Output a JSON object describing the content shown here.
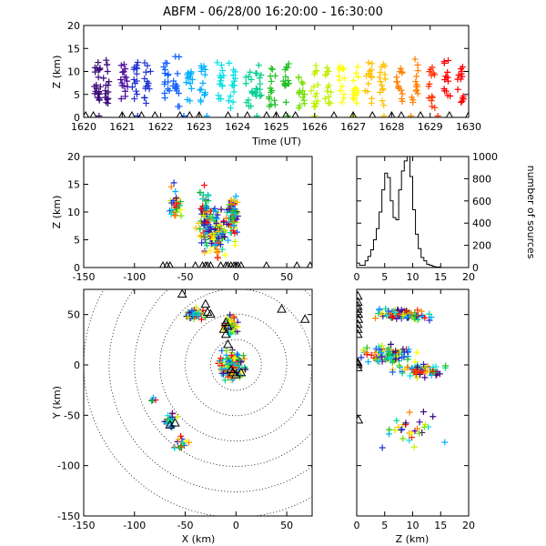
{
  "title": "ABFM - 06/28/00 16:20:00 - 16:30:00",
  "colors": {
    "time_palette": [
      "#3a0a78",
      "#4a0898",
      "#2030d0",
      "#1060ff",
      "#00b0ff",
      "#00e0e0",
      "#00d090",
      "#20c020",
      "#70e000",
      "#c0f000",
      "#ffff00",
      "#ffc000",
      "#ff8000",
      "#ff3000",
      "#ff0000"
    ],
    "axis": "#000000",
    "station_marker": "#000000"
  },
  "chart_data": [
    {
      "id": "time_height",
      "type": "scatter",
      "marker": "plus",
      "xlabel": "Time (UT)",
      "ylabel": "Z (km)",
      "x_ticks": [
        "1620",
        "1621",
        "1622",
        "1623",
        "1624",
        "1625",
        "1626",
        "1627",
        "1628",
        "1629",
        "1630"
      ],
      "y_ticks": [
        "0",
        "5",
        "10",
        "15",
        "20"
      ],
      "xlim": [
        0,
        10
      ],
      "ylim": [
        0,
        20
      ],
      "x_note": "x is minutes after 16:20:00 UT",
      "bursts": [
        {
          "t": 0.35,
          "zmin": 2,
          "zmax": 12,
          "n": 22
        },
        {
          "t": 0.6,
          "zmin": 3,
          "zmax": 13,
          "n": 16
        },
        {
          "t": 1.05,
          "zmin": 1.5,
          "zmax": 12,
          "n": 16
        },
        {
          "t": 1.35,
          "zmin": 4,
          "zmax": 12,
          "n": 14
        },
        {
          "t": 1.65,
          "zmin": 3,
          "zmax": 13,
          "n": 14
        },
        {
          "t": 2.15,
          "zmin": 3,
          "zmax": 12,
          "n": 14
        },
        {
          "t": 2.4,
          "zmin": 2,
          "zmax": 14,
          "n": 14
        },
        {
          "t": 2.75,
          "zmin": 3,
          "zmax": 10,
          "n": 14
        },
        {
          "t": 3.1,
          "zmin": 3,
          "zmax": 12,
          "n": 14
        },
        {
          "t": 3.55,
          "zmin": 3,
          "zmax": 12,
          "n": 14
        },
        {
          "t": 3.85,
          "zmin": 2,
          "zmax": 12,
          "n": 14
        },
        {
          "t": 4.3,
          "zmin": 2,
          "zmax": 10,
          "n": 12
        },
        {
          "t": 4.55,
          "zmin": 4,
          "zmax": 12,
          "n": 14
        },
        {
          "t": 4.9,
          "zmin": 2,
          "zmax": 11,
          "n": 14
        },
        {
          "t": 5.25,
          "zmin": 3,
          "zmax": 12,
          "n": 14
        },
        {
          "t": 5.65,
          "zmin": 2,
          "zmax": 10,
          "n": 14
        },
        {
          "t": 6.0,
          "zmin": 2,
          "zmax": 12,
          "n": 14
        },
        {
          "t": 6.35,
          "zmin": 3,
          "zmax": 11,
          "n": 14
        },
        {
          "t": 6.7,
          "zmin": 3,
          "zmax": 12,
          "n": 14
        },
        {
          "t": 7.05,
          "zmin": 3,
          "zmax": 11,
          "n": 14
        },
        {
          "t": 7.4,
          "zmin": 3,
          "zmax": 12,
          "n": 14
        },
        {
          "t": 7.75,
          "zmin": 2,
          "zmax": 12,
          "n": 14
        },
        {
          "t": 8.2,
          "zmin": 3,
          "zmax": 12,
          "n": 14
        },
        {
          "t": 8.6,
          "zmin": 3,
          "zmax": 13,
          "n": 14
        },
        {
          "t": 9.05,
          "zmin": 2,
          "zmax": 12,
          "n": 14
        },
        {
          "t": 9.45,
          "zmin": 3,
          "zmax": 13,
          "n": 14
        },
        {
          "t": 9.8,
          "zmin": 3,
          "zmax": 12,
          "n": 14
        }
      ],
      "near_ground_stripe": {
        "z": 0,
        "t": [
          0.4,
          1.4,
          2.6,
          3.2,
          4.5,
          5.3,
          6.0,
          7.0,
          7.8,
          8.5,
          9.2
        ]
      },
      "stations": [
        0.05,
        0.25,
        1.0,
        1.25,
        1.5,
        1.85,
        2.5,
        2.75,
        3.0,
        3.75,
        4.25,
        4.75,
        5.0,
        5.25,
        5.5,
        6.5,
        7.0,
        7.5,
        8.0,
        8.25,
        8.75,
        9.5,
        10.0
      ]
    },
    {
      "id": "xz_projection",
      "type": "scatter",
      "marker": "plus",
      "ylabel": "Z (km)",
      "x_ticks": [
        "-150",
        "-100",
        "-50",
        "0",
        "50"
      ],
      "y_ticks": [
        "0",
        "5",
        "10",
        "15",
        "20"
      ],
      "xlim": [
        -150,
        75
      ],
      "ylim": [
        0,
        20
      ],
      "clusters": [
        {
          "x": -30,
          "z": 9,
          "sx": 5,
          "sz": 3.5,
          "n": 90
        },
        {
          "x": -18,
          "z": 6,
          "sx": 5,
          "sz": 3,
          "n": 80
        },
        {
          "x": -4,
          "z": 9,
          "sx": 4,
          "sz": 3,
          "n": 70
        },
        {
          "x": -60,
          "z": 11,
          "sx": 4,
          "sz": 2.5,
          "n": 30
        }
      ],
      "stations": [
        -72,
        -68,
        -65,
        -40,
        -33,
        -30,
        -28,
        -25,
        -15,
        -10,
        -8,
        -5,
        -2,
        0,
        2,
        5,
        30,
        60,
        73
      ]
    },
    {
      "id": "histogram",
      "type": "bar",
      "ylabel": "number of sources",
      "x_ticks": [
        "0",
        "5",
        "10",
        "15",
        "20"
      ],
      "y_ticks": [
        "0",
        "200",
        "400",
        "600",
        "800",
        "1000"
      ],
      "xlim": [
        0,
        20
      ],
      "ylim": [
        0,
        1000
      ],
      "bin_width": 0.5,
      "bins_start": [
        0,
        0.5,
        1,
        1.5,
        2,
        2.5,
        3,
        3.5,
        4,
        4.5,
        5,
        5.5,
        6,
        6.5,
        7,
        7.5,
        8,
        8.5,
        9,
        9.5,
        10,
        10.5,
        11,
        11.5,
        12,
        12.5,
        13,
        13.5,
        14,
        14.5,
        15,
        15.5,
        16,
        16.5,
        17,
        17.5,
        18,
        18.5,
        19,
        19.5
      ],
      "values": [
        40,
        20,
        20,
        60,
        100,
        160,
        250,
        350,
        500,
        700,
        850,
        810,
        600,
        450,
        430,
        700,
        870,
        960,
        1000,
        820,
        520,
        300,
        170,
        90,
        60,
        30,
        20,
        10,
        5,
        5,
        0,
        0,
        0,
        0,
        0,
        0,
        0,
        0,
        0,
        0
      ]
    },
    {
      "id": "plan_view",
      "type": "scatter",
      "marker": "plus",
      "xlabel": "X (km)",
      "ylabel": "Y (km)",
      "x_ticks": [
        "-150",
        "-100",
        "-50",
        "0",
        "50"
      ],
      "y_ticks": [
        "-150",
        "-100",
        "-50",
        "0",
        "50"
      ],
      "xlim": [
        -150,
        75
      ],
      "ylim": [
        -150,
        75
      ],
      "range_rings_km": [
        25,
        50,
        75,
        100,
        125,
        150
      ],
      "clusters": [
        {
          "x": -5,
          "y": 0,
          "sx": 10,
          "sy": 10,
          "n": 110
        },
        {
          "x": -40,
          "y": 50,
          "sx": 6,
          "sy": 4,
          "n": 40
        },
        {
          "x": -5,
          "y": 40,
          "sx": 5,
          "sy": 6,
          "n": 40
        },
        {
          "x": -65,
          "y": -55,
          "sx": 5,
          "sy": 5,
          "n": 22
        },
        {
          "x": -55,
          "y": -78,
          "sx": 6,
          "sy": 5,
          "n": 16
        },
        {
          "x": -80,
          "y": -35,
          "sx": 3,
          "sy": 3,
          "n": 4
        }
      ],
      "stations": [
        [
          -53,
          70
        ],
        [
          -30,
          60
        ],
        [
          -25,
          50
        ],
        [
          -28,
          52
        ],
        [
          -10,
          42
        ],
        [
          -12,
          35
        ],
        [
          -8,
          38
        ],
        [
          -10,
          30
        ],
        [
          -5,
          -5
        ],
        [
          -3,
          -8
        ],
        [
          0,
          -10
        ],
        [
          5,
          -8
        ],
        [
          -8,
          20
        ],
        [
          45,
          55
        ],
        [
          68,
          45
        ],
        [
          -65,
          -60
        ],
        [
          -60,
          -58
        ]
      ]
    },
    {
      "id": "zy_projection",
      "type": "scatter",
      "marker": "plus",
      "xlabel": "Z (km)",
      "x_ticks": [
        "0",
        "5",
        "10",
        "15",
        "20"
      ],
      "y_ticks": [
        "-150",
        "-100",
        "-50",
        "0",
        "50"
      ],
      "xlim": [
        0,
        20
      ],
      "ylim": [
        -150,
        75
      ],
      "clusters": [
        {
          "z": 8,
          "y": 50,
          "sz": 3.5,
          "sy": 4,
          "n": 90
        },
        {
          "z": 6,
          "y": 10,
          "sz": 3,
          "sy": 7,
          "n": 90
        },
        {
          "z": 11,
          "y": -5,
          "sz": 3,
          "sy": 5,
          "n": 60
        },
        {
          "z": 10,
          "y": -65,
          "sz": 3.5,
          "sy": 12,
          "n": 30
        }
      ],
      "stations": [
        [
          0.2,
          68
        ],
        [
          0.2,
          62
        ],
        [
          0.2,
          58
        ],
        [
          0.2,
          55
        ],
        [
          0.3,
          50
        ],
        [
          0.3,
          45
        ],
        [
          0.2,
          40
        ],
        [
          0.2,
          35
        ],
        [
          0.2,
          30
        ],
        [
          0.2,
          2
        ],
        [
          0.2,
          0
        ],
        [
          0.2,
          -3
        ],
        [
          0.3,
          -55
        ]
      ]
    }
  ]
}
